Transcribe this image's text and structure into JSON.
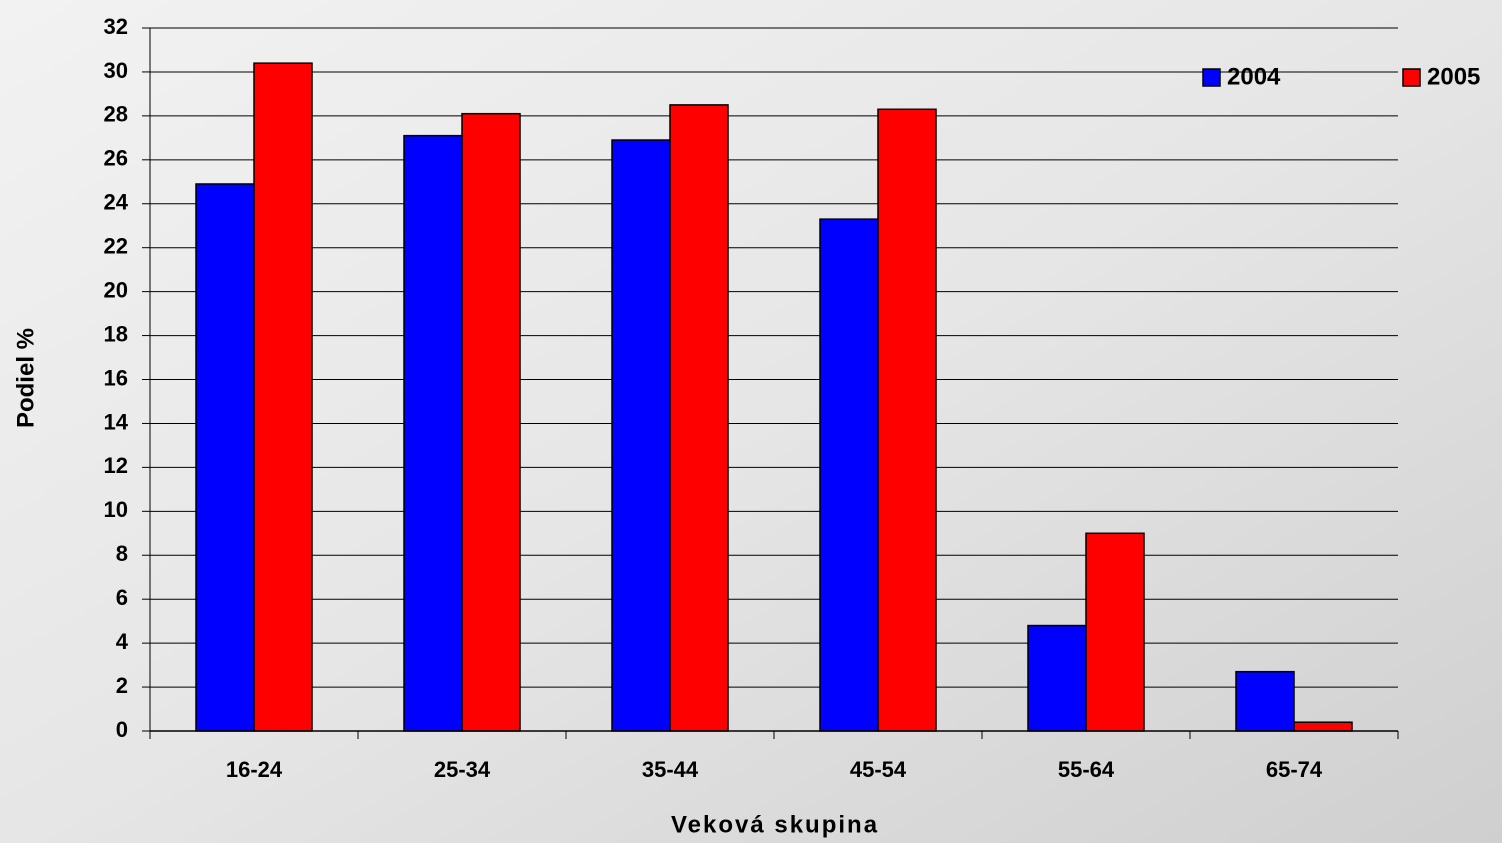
{
  "chart_data": {
    "type": "bar",
    "x_label": "Veková skupina",
    "y_label": "Podiel %",
    "categories": [
      "16-24",
      "25-34",
      "35-44",
      "45-54",
      "55-64",
      "65-74"
    ],
    "series": [
      {
        "name": "2004",
        "color": "#0000ff",
        "values": [
          24.9,
          27.1,
          26.9,
          23.3,
          4.8,
          2.7
        ]
      },
      {
        "name": "2005",
        "color": "#ff0000",
        "values": [
          30.4,
          28.1,
          28.5,
          28.3,
          9.0,
          0.4
        ]
      }
    ],
    "ylim": [
      0,
      32
    ],
    "yticks": [
      0,
      2,
      4,
      6,
      8,
      10,
      12,
      14,
      16,
      18,
      20,
      22,
      24,
      26,
      28,
      30,
      32
    ],
    "grid": true,
    "legend": "top-right"
  }
}
